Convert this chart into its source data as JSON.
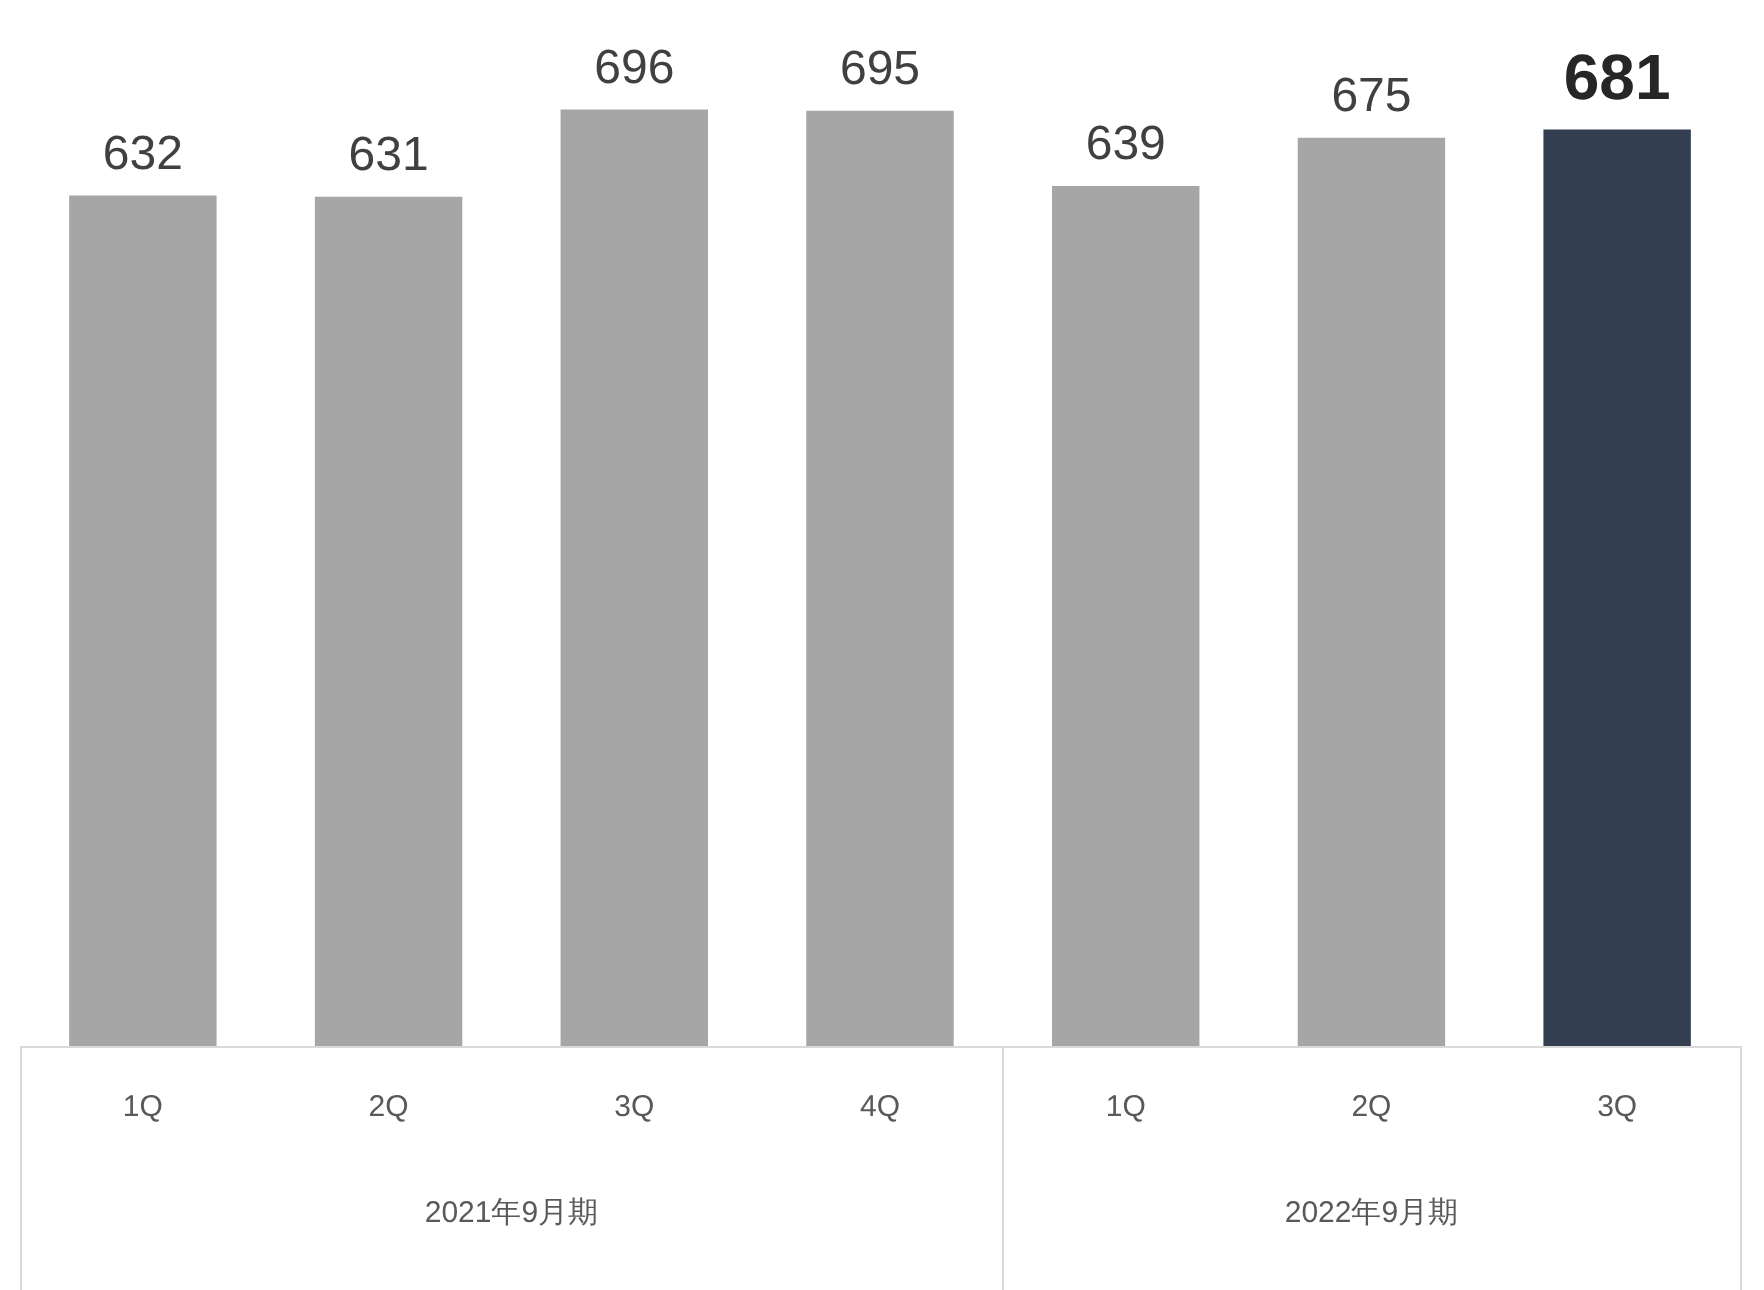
{
  "chart_data": {
    "type": "bar",
    "categories": [
      "1Q",
      "2Q",
      "3Q",
      "4Q",
      "1Q",
      "2Q",
      "3Q"
    ],
    "values": [
      632,
      631,
      696,
      695,
      639,
      675,
      681
    ],
    "colors": [
      "#a6a6a6",
      "#a6a6a6",
      "#a6a6a6",
      "#a6a6a6",
      "#a6a6a6",
      "#a6a6a6",
      "#333f50"
    ],
    "data_labels": true,
    "grid": false,
    "legend": false,
    "annotations": [
      "2021年9月期",
      "2022年9月期"
    ]
  }
}
